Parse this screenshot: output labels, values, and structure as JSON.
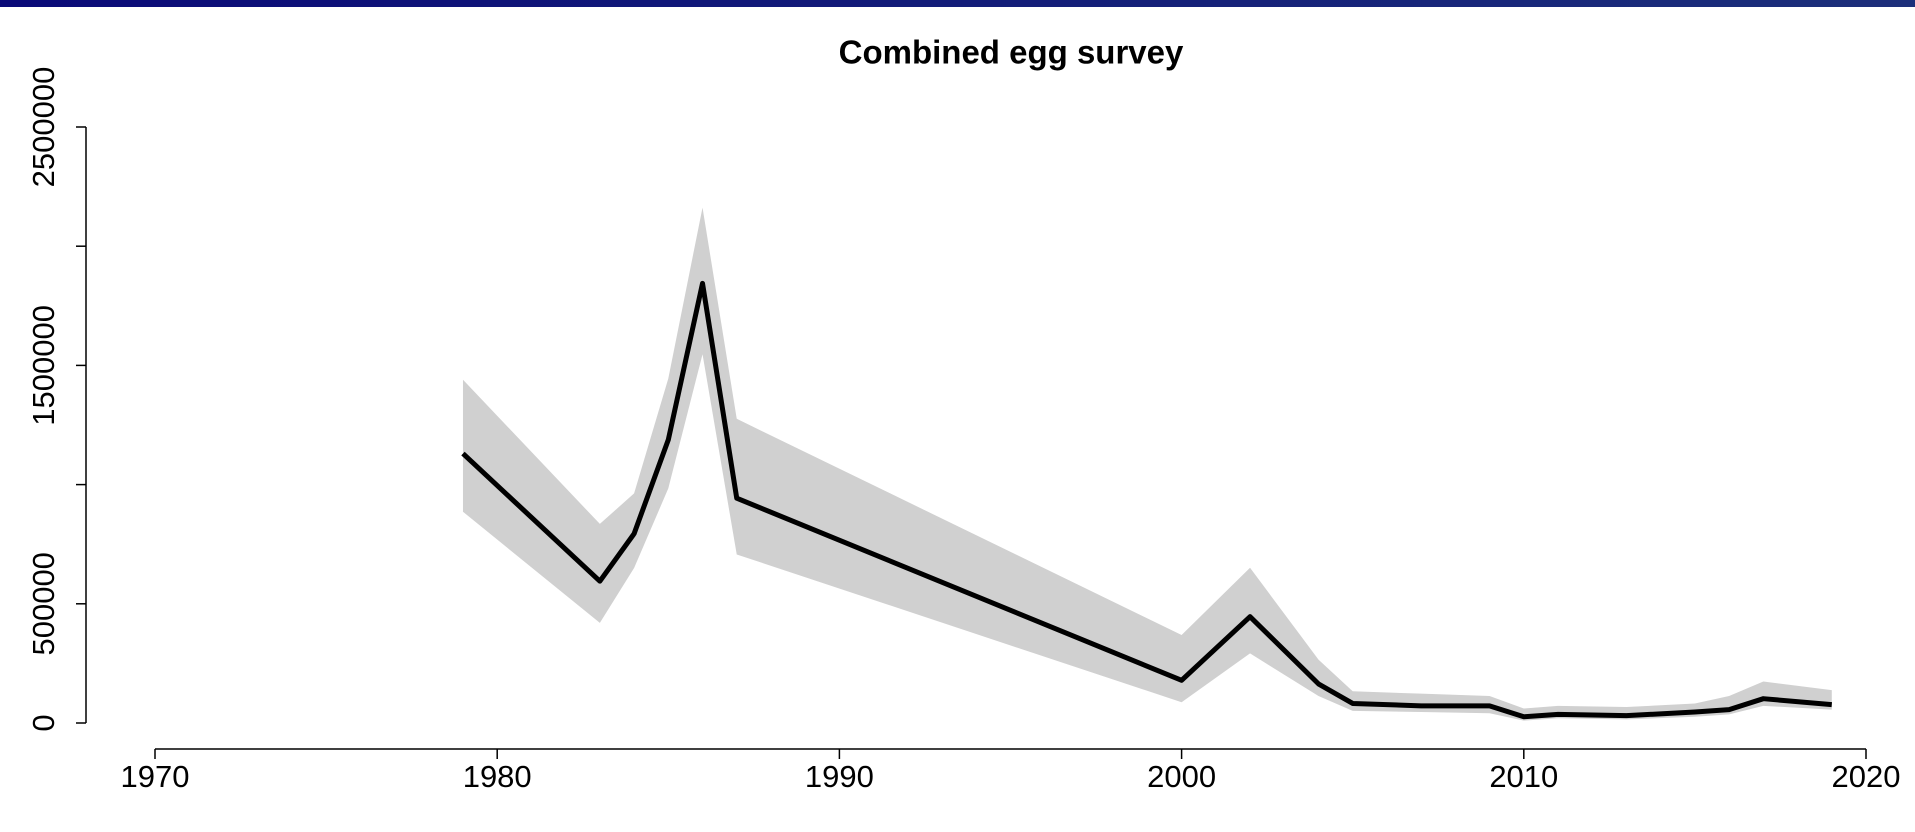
{
  "chart_data": {
    "type": "line",
    "title": "Combined egg survey",
    "x": [
      1979,
      1983,
      1984,
      1985,
      1986,
      1987,
      2000,
      2002,
      2004,
      2005,
      2007,
      2009,
      2010,
      2011,
      2013,
      2015,
      2016,
      2017,
      2019
    ],
    "values": [
      1130000,
      595000,
      794000,
      1188000,
      1844000,
      943000,
      179000,
      446000,
      164000,
      82000,
      72000,
      72000,
      26000,
      36000,
      31000,
      46000,
      56000,
      102000,
      77000
    ],
    "upper": [
      1440000,
      835000,
      963000,
      1445000,
      2162000,
      1276000,
      369000,
      651000,
      266000,
      133000,
      123000,
      113000,
      61000,
      72000,
      67000,
      82000,
      113000,
      174000,
      138000
    ],
    "lower": [
      886000,
      420000,
      650000,
      984000,
      1547000,
      707000,
      87000,
      292000,
      113000,
      51000,
      46000,
      41000,
      10000,
      20000,
      15000,
      26000,
      36000,
      72000,
      56000
    ],
    "color": "#000000",
    "band_color": "#d0d0d0",
    "xlim": [
      1970,
      2020
    ],
    "xticks": [
      1970,
      1980,
      1990,
      2000,
      2010,
      2020
    ],
    "ylim": [
      0,
      2500000
    ],
    "yticks": [
      0,
      500000,
      {
        "value": 1000000,
        "label": null
      },
      1500000,
      {
        "value": 2000000,
        "label": null
      },
      2500000
    ]
  }
}
